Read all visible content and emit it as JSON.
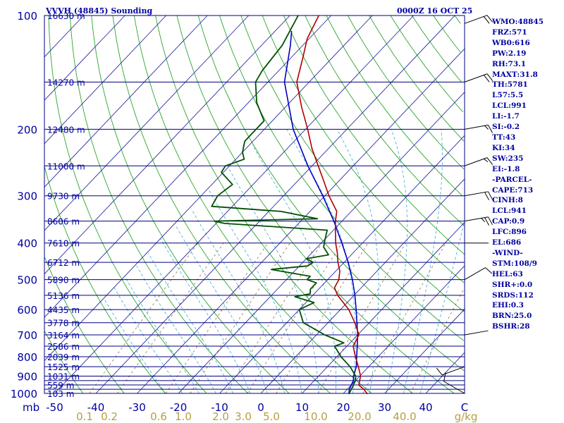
{
  "header": {
    "station": "VVVH (48845) Sounding",
    "time": "0000Z 16 OCT 25"
  },
  "colors": {
    "frame": "#00007f",
    "isobar": "#00007f",
    "isotherm": "#2a2aa0",
    "dry_adiabat": "#2ca52c",
    "moist_adiabat": "#4fb3e0",
    "mixing_ratio": "#8c7040",
    "temperature": "#b00000",
    "dewpoint": "#005000",
    "parcel": "#0000c0",
    "text": "#0000a0",
    "mixing_label": "#b5a040",
    "wind_barb": "#000000"
  },
  "sidebar": {
    "stats": [
      "WMO:48845",
      "FRZ:571",
      "WB0:616",
      "PW:2.19",
      "RH:73.1",
      "MAXT:31.8",
      "TH:5781",
      "L57:5.5",
      "LCL:991",
      "LI:-1.7",
      "SI:-0.2",
      "TT:43",
      "KI:34",
      "SW:235",
      "EI:-1.8",
      "-PARCEL-",
      "CAPE:713",
      "CINH:8",
      "LCL:941",
      "CAP:0.9",
      "LFC:896",
      "EL:686",
      "-WIND-",
      "STM:108/9",
      "HEL:63",
      "SHR+:0.0",
      "SRDS:112",
      "EHI:0.3",
      "BRN:25.0",
      "BSHR:28"
    ]
  },
  "chart_data": {
    "type": "skew-t",
    "title": "VVVH (48845) Sounding",
    "valid_time": "0000Z 16 OCT 25",
    "xlabel": "",
    "ylabel": "mb",
    "pressure_ticks": [
      100,
      200,
      300,
      400,
      500,
      600,
      700,
      800,
      900,
      1000
    ],
    "isobars": [
      100,
      150,
      200,
      250,
      300,
      350,
      400,
      450,
      500,
      550,
      600,
      650,
      700,
      750,
      800,
      850,
      900,
      925,
      950,
      975,
      1000
    ],
    "temperature_ticks": [
      -50,
      -40,
      -30,
      -20,
      -10,
      0,
      10,
      20,
      30,
      40
    ],
    "axis_corner_label": "C",
    "mixing_ratio_labels": [
      "0.1",
      "0.2",
      "0.6",
      "1.0",
      "2.0",
      "3.0",
      "5.0",
      "10.0",
      "20.0",
      "40.0"
    ],
    "mixing_ratio_values": [
      0.1,
      0.2,
      0.6,
      1.0,
      2.0,
      3.0,
      5.0,
      10.0,
      20.0,
      40.0
    ],
    "mixing_ratio_unit": "g/kg",
    "height_labels": [
      {
        "p": 100,
        "label": "16630 m"
      },
      {
        "p": 150,
        "label": "14270 m"
      },
      {
        "p": 200,
        "label": "12480 m"
      },
      {
        "p": 250,
        "label": "11000 m"
      },
      {
        "p": 300,
        "label": "9730 m"
      },
      {
        "p": 350,
        "label": "8606 m"
      },
      {
        "p": 400,
        "label": "7610 m"
      },
      {
        "p": 450,
        "label": "6712 m"
      },
      {
        "p": 500,
        "label": "5890 m"
      },
      {
        "p": 550,
        "label": "5136 m"
      },
      {
        "p": 600,
        "label": "4435 m"
      },
      {
        "p": 650,
        "label": "3778 m"
      },
      {
        "p": 700,
        "label": "3164 m"
      },
      {
        "p": 750,
        "label": "2586 m"
      },
      {
        "p": 800,
        "label": "2039 m"
      },
      {
        "p": 850,
        "label": "1525 m"
      },
      {
        "p": 900,
        "label": "1031 m"
      },
      {
        "p": 950,
        "label": "559 m"
      },
      {
        "p": 1000,
        "label": "103 m"
      }
    ],
    "temperature_profile": [
      [
        1004,
        26.0
      ],
      [
        975,
        24.0
      ],
      [
        950,
        21.8
      ],
      [
        925,
        21.0
      ],
      [
        900,
        20.2
      ],
      [
        850,
        17.5
      ],
      [
        800,
        14.5
      ],
      [
        750,
        11.5
      ],
      [
        700,
        10.3
      ],
      [
        650,
        6.5
      ],
      [
        600,
        2.0
      ],
      [
        550,
        -4.0
      ],
      [
        525,
        -6.5
      ],
      [
        500,
        -7.3
      ],
      [
        475,
        -9.0
      ],
      [
        450,
        -11.5
      ],
      [
        425,
        -13.8
      ],
      [
        400,
        -16.5
      ],
      [
        375,
        -19.0
      ],
      [
        350,
        -21.6
      ],
      [
        330,
        -23.5
      ],
      [
        300,
        -29.0
      ],
      [
        275,
        -33.5
      ],
      [
        250,
        -38.5
      ],
      [
        225,
        -44.0
      ],
      [
        200,
        -49.5
      ],
      [
        175,
        -56.0
      ],
      [
        150,
        -63.0
      ],
      [
        130,
        -67.0
      ],
      [
        115,
        -70.5
      ],
      [
        100,
        -73.0
      ]
    ],
    "dewpoint_profile": [
      [
        1004,
        21.5
      ],
      [
        975,
        21.0
      ],
      [
        950,
        20.5
      ],
      [
        925,
        20.0
      ],
      [
        900,
        19.0
      ],
      [
        850,
        15.5
      ],
      [
        800,
        11.0
      ],
      [
        750,
        7.0
      ],
      [
        735,
        8.5
      ],
      [
        700,
        2.0
      ],
      [
        650,
        -6.0
      ],
      [
        600,
        -10.0
      ],
      [
        575,
        -8.0
      ],
      [
        555,
        -14.0
      ],
      [
        545,
        -11.0
      ],
      [
        530,
        -12.0
      ],
      [
        510,
        -12.0
      ],
      [
        500,
        -15.0
      ],
      [
        490,
        -15.0
      ],
      [
        470,
        -26.0
      ],
      [
        460,
        -18.0
      ],
      [
        450,
        -17.5
      ],
      [
        440,
        -20.0
      ],
      [
        430,
        -15.5
      ],
      [
        410,
        -18.5
      ],
      [
        390,
        -20.0
      ],
      [
        370,
        -21.5
      ],
      [
        355,
        -48.0
      ],
      [
        350,
        -51.0
      ],
      [
        345,
        -26.5
      ],
      [
        330,
        -37.0
      ],
      [
        320,
        -55.0
      ],
      [
        300,
        -56.0
      ],
      [
        280,
        -55.0
      ],
      [
        260,
        -60.5
      ],
      [
        250,
        -61.0
      ],
      [
        240,
        -58.0
      ],
      [
        230,
        -60.0
      ],
      [
        215,
        -62.0
      ],
      [
        190,
        -62.0
      ],
      [
        170,
        -68.0
      ],
      [
        150,
        -73.0
      ],
      [
        140,
        -74.0
      ],
      [
        120,
        -75.0
      ],
      [
        100,
        -78.0
      ]
    ],
    "parcel_profile": [
      [
        1004,
        21.5
      ],
      [
        975,
        20.5
      ],
      [
        950,
        20.0
      ],
      [
        925,
        19.5
      ],
      [
        900,
        18.5
      ],
      [
        850,
        17.0
      ],
      [
        800,
        14.8
      ],
      [
        750,
        12.5
      ],
      [
        700,
        10.0
      ],
      [
        650,
        7.0
      ],
      [
        600,
        3.8
      ],
      [
        550,
        0.2
      ],
      [
        500,
        -4.0
      ],
      [
        450,
        -9.0
      ],
      [
        400,
        -15.0
      ],
      [
        350,
        -22.0
      ],
      [
        300,
        -30.5
      ],
      [
        250,
        -41.0
      ],
      [
        200,
        -53.0
      ],
      [
        150,
        -66.0
      ],
      [
        120,
        -73.0
      ],
      [
        110,
        -76.0
      ]
    ],
    "wind_barbs": [
      {
        "p": 105,
        "dir": 70,
        "speed_kt": 20
      },
      {
        "p": 150,
        "dir": 70,
        "speed_kt": 20
      },
      {
        "p": 200,
        "dir": 80,
        "speed_kt": 15
      },
      {
        "p": 250,
        "dir": 70,
        "speed_kt": 15
      },
      {
        "p": 300,
        "dir": 80,
        "speed_kt": 20
      },
      {
        "p": 350,
        "dir": 80,
        "speed_kt": 25
      },
      {
        "p": 400,
        "dir": 90,
        "speed_kt": 0
      },
      {
        "p": 500,
        "dir": 60,
        "speed_kt": 10
      },
      {
        "p": 700,
        "dir": 80,
        "speed_kt": 0
      },
      {
        "p": 850,
        "dir": 250,
        "speed_kt": 10
      },
      {
        "p": 1000,
        "dir": 300,
        "speed_kt": 10
      }
    ]
  }
}
